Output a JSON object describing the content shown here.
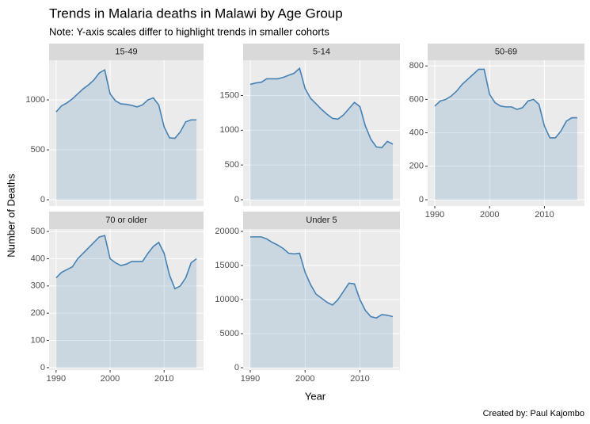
{
  "title": "Trends in Malaria deaths in Malawi by Age Group",
  "subtitle": "Note: Y-axis scales differ to highlight trends in smaller cohorts",
  "x_label": "Year",
  "y_label": "Number of Deaths",
  "caption": "Created by: Paul Kajombo",
  "chart_data": [
    {
      "type": "area",
      "title": "15-49",
      "color": "#4682b4",
      "x": [
        1990,
        1991,
        1992,
        1993,
        1994,
        1995,
        1996,
        1997,
        1998,
        1999,
        2000,
        2001,
        2002,
        2003,
        2004,
        2005,
        2006,
        2007,
        2008,
        2009,
        2010,
        2011,
        2012,
        2013,
        2014,
        2015,
        2016
      ],
      "values": [
        880,
        940,
        970,
        1010,
        1060,
        1110,
        1150,
        1200,
        1270,
        1300,
        1060,
        990,
        960,
        955,
        945,
        930,
        950,
        1000,
        1020,
        950,
        730,
        620,
        615,
        680,
        780,
        800,
        800
      ],
      "xlim": [
        1988.7,
        2017.3
      ],
      "xticks": [
        1990,
        2000,
        2010
      ],
      "ylim": [
        -63,
        1397
      ],
      "yticks": [
        0,
        500,
        1000
      ]
    },
    {
      "type": "area",
      "title": "5-14",
      "color": "#4682b4",
      "x": [
        1990,
        1991,
        1992,
        1993,
        1994,
        1995,
        1996,
        1997,
        1998,
        1999,
        2000,
        2001,
        2002,
        2003,
        2004,
        2005,
        2006,
        2007,
        2008,
        2009,
        2010,
        2011,
        2012,
        2013,
        2014,
        2015,
        2016
      ],
      "values": [
        1660,
        1680,
        1690,
        1740,
        1740,
        1740,
        1760,
        1790,
        1820,
        1890,
        1600,
        1460,
        1380,
        1300,
        1230,
        1170,
        1160,
        1220,
        1310,
        1400,
        1340,
        1060,
        870,
        760,
        750,
        840,
        800
      ],
      "xlim": [
        1988.7,
        2017.3
      ],
      "xticks": [
        1990,
        2000,
        2010
      ],
      "ylim": [
        -91,
        2007
      ],
      "yticks": [
        0,
        500,
        1000,
        1500
      ]
    },
    {
      "type": "area",
      "title": "50-69",
      "color": "#4682b4",
      "x": [
        1990,
        1991,
        1992,
        1993,
        1994,
        1995,
        1996,
        1997,
        1998,
        1999,
        2000,
        2001,
        2002,
        2003,
        2004,
        2005,
        2006,
        2007,
        2008,
        2009,
        2010,
        2011,
        2012,
        2013,
        2014,
        2015,
        2016
      ],
      "values": [
        560,
        590,
        600,
        620,
        650,
        690,
        720,
        750,
        780,
        780,
        630,
        580,
        560,
        555,
        555,
        540,
        550,
        590,
        600,
        570,
        440,
        370,
        370,
        410,
        470,
        490,
        490
      ],
      "xlim": [
        1988.7,
        2017.3
      ],
      "xticks": [
        1990,
        2000,
        2010
      ],
      "ylim": [
        -38,
        834
      ],
      "yticks": [
        0,
        200,
        400,
        600,
        800
      ]
    },
    {
      "type": "area",
      "title": "70 or older",
      "color": "#4682b4",
      "x": [
        1990,
        1991,
        1992,
        1993,
        1994,
        1995,
        1996,
        1997,
        1998,
        1999,
        2000,
        2001,
        2002,
        2003,
        2004,
        2005,
        2006,
        2007,
        2008,
        2009,
        2010,
        2011,
        2012,
        2013,
        2014,
        2015,
        2016
      ],
      "values": [
        330,
        350,
        360,
        370,
        400,
        420,
        440,
        460,
        480,
        485,
        400,
        385,
        375,
        380,
        390,
        390,
        390,
        420,
        445,
        460,
        420,
        340,
        290,
        300,
        330,
        385,
        400
      ],
      "xlim": [
        1988.7,
        2017.3
      ],
      "xticks": [
        1990,
        2000,
        2010
      ],
      "ylim": [
        -9,
        509
      ],
      "yticks": [
        0,
        100,
        200,
        300,
        400,
        500
      ]
    },
    {
      "type": "area",
      "title": "Under 5",
      "color": "#4682b4",
      "x": [
        1990,
        1991,
        1992,
        1993,
        1994,
        1995,
        1996,
        1997,
        1998,
        1999,
        2000,
        2001,
        2002,
        2003,
        2004,
        2005,
        2006,
        2007,
        2008,
        2009,
        2010,
        2011,
        2012,
        2013,
        2014,
        2015,
        2016
      ],
      "values": [
        19200,
        19200,
        19200,
        18900,
        18400,
        18000,
        17500,
        16800,
        16700,
        16800,
        14000,
        12200,
        10800,
        10200,
        9600,
        9200,
        10000,
        11200,
        12400,
        12300,
        10000,
        8400,
        7500,
        7300,
        7800,
        7700,
        7500
      ],
      "xlim": [
        1988.7,
        2017.3
      ],
      "xticks": [
        1990,
        2000,
        2010
      ],
      "ylim": [
        -349,
        20349
      ],
      "yticks": [
        0,
        5000,
        10000,
        15000,
        20000
      ]
    }
  ]
}
